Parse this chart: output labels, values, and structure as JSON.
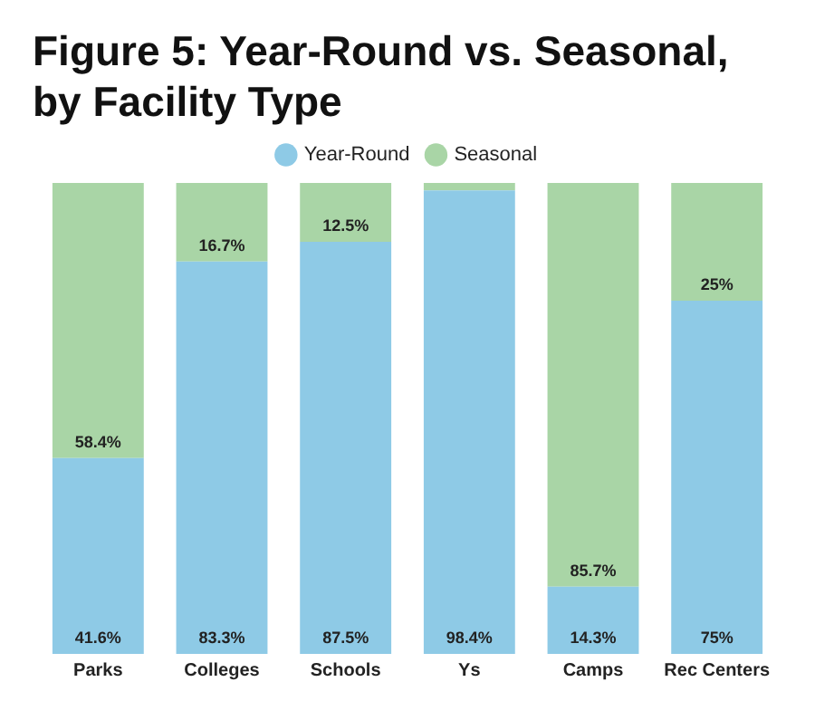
{
  "chart_data": {
    "type": "bar",
    "title": "Figure 5: Year-Round vs. Seasonal, by Facility Type",
    "stacked": true,
    "legend": "top",
    "grid": false,
    "tick_labels": "x",
    "categories": [
      "Parks",
      "Colleges",
      "Schools",
      "Ys",
      "Camps",
      "Rec Centers"
    ],
    "series": [
      {
        "name": "Year-Round",
        "color": "#8ecae6",
        "values": [
          41.6,
          83.3,
          87.5,
          98.4,
          14.3,
          75
        ],
        "value_labels": [
          "41.6%",
          "83.3%",
          "87.5%",
          "98.4%",
          "14.3%",
          "75%"
        ]
      },
      {
        "name": "Seasonal",
        "color": "#a9d5a6",
        "values": [
          58.4,
          16.7,
          12.5,
          1.6,
          85.7,
          25
        ],
        "value_labels": [
          "58.4%",
          "16.7%",
          "12.5%",
          null,
          "85.7%",
          "25%"
        ]
      }
    ]
  }
}
